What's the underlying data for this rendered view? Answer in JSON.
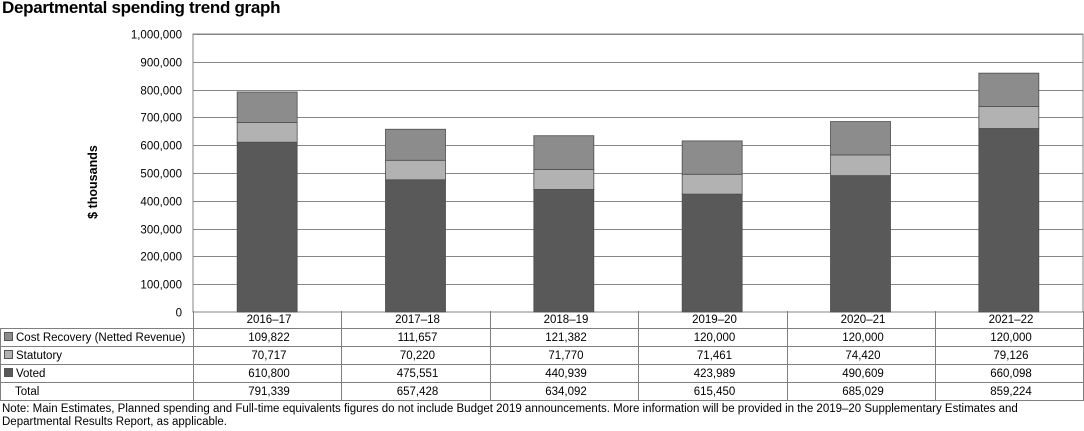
{
  "title": "Departmental spending trend graph",
  "chart_data": {
    "type": "bar",
    "stacked": true,
    "title": "Departmental spending trend graph",
    "ylabel": "$ thousands",
    "xlabel": "",
    "ylim": [
      0,
      1000000
    ],
    "yticks": [
      "0",
      "100,000",
      "200,000",
      "300,000",
      "400,000",
      "500,000",
      "600,000",
      "700,000",
      "800,000",
      "900,000",
      "1,000,000"
    ],
    "grid": true,
    "categories": [
      "2016–17",
      "2017–18",
      "2018–19",
      "2019–20",
      "2020–21",
      "2021–22"
    ],
    "series": [
      {
        "name": "Voted",
        "color": "#595959",
        "values": [
          610800,
          475551,
          440939,
          423989,
          490609,
          660098
        ]
      },
      {
        "name": "Statutory",
        "color": "#b2b2b2",
        "values": [
          70717,
          70220,
          71770,
          71461,
          74420,
          79126
        ]
      },
      {
        "name": "Cost Recovery (Netted Revenue)",
        "color": "#8c8c8c",
        "values": [
          109822,
          111657,
          121382,
          120000,
          120000,
          120000
        ]
      }
    ]
  },
  "table": {
    "rows": [
      {
        "label": "Cost Recovery (Netted Revenue)",
        "color": "#8c8c8c",
        "cells": [
          "109,822",
          "111,657",
          "121,382",
          "120,000",
          "120,000",
          "120,000"
        ]
      },
      {
        "label": "Statutory",
        "color": "#b2b2b2",
        "cells": [
          "70,717",
          "70,220",
          "71,770",
          "71,461",
          "74,420",
          "79,126"
        ]
      },
      {
        "label": "Voted",
        "color": "#595959",
        "cells": [
          "610,800",
          "475,551",
          "440,939",
          "423,989",
          "490,609",
          "660,098"
        ]
      },
      {
        "label": "Total",
        "color": "",
        "cells": [
          "791,339",
          "657,428",
          "634,092",
          "615,450",
          "685,029",
          "859,224"
        ]
      }
    ]
  },
  "note": "Note: Main Estimates, Planned spending and Full-time equivalents figures do not include Budget 2019 announcements. More information will be provided in the 2019–20 Supplementary Estimates and Departmental Results Report, as applicable."
}
